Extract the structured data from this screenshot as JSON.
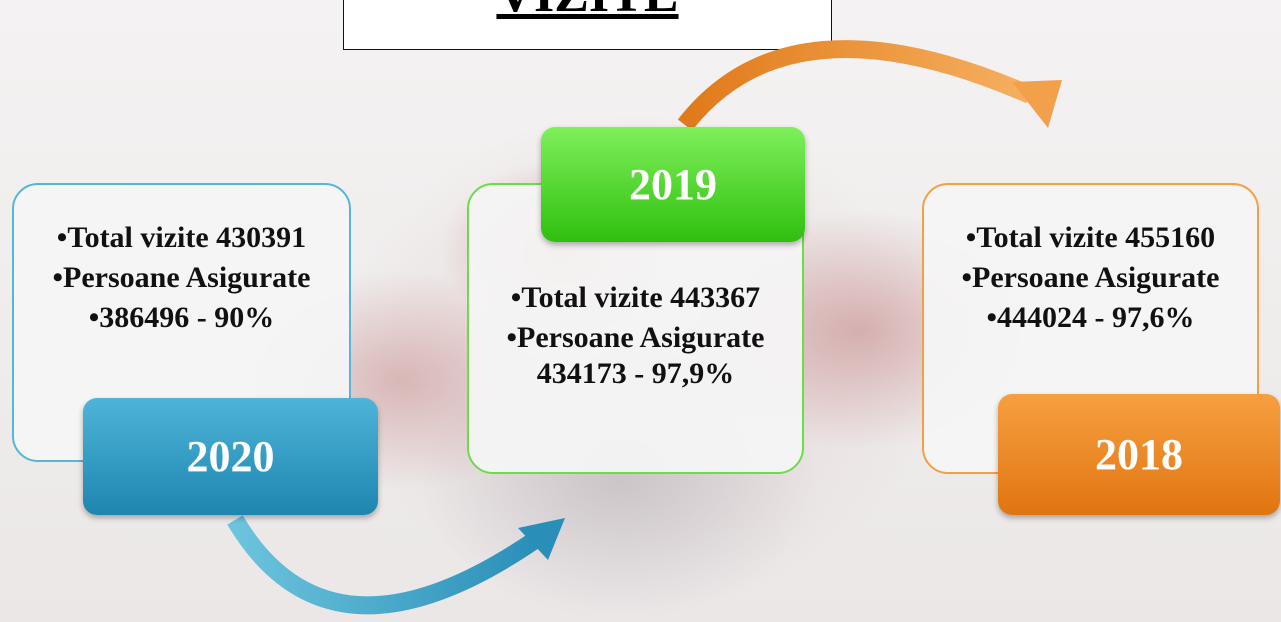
{
  "title": "VIZITE",
  "cards": [
    {
      "year": "2020",
      "items": [
        "Total vizite 430391",
        "Persoane Asigurate",
        "386496 - 90%"
      ]
    },
    {
      "year": "2019",
      "items": [
        "Total vizite 443367",
        "Persoane Asigurate 434173 - 97,9%"
      ]
    },
    {
      "year": "2018",
      "items": [
        "Total vizite 455160",
        "Persoane Asigurate",
        "444024 - 97,6%"
      ]
    }
  ]
}
